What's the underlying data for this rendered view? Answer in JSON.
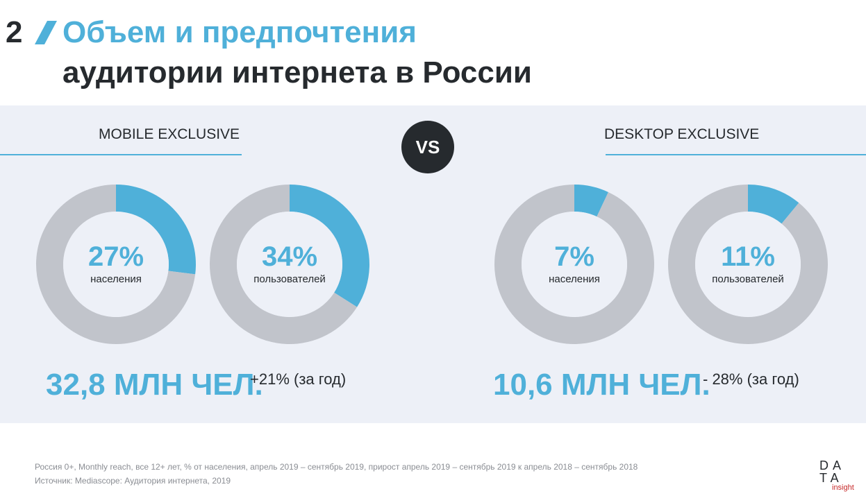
{
  "header": {
    "slide_number": "2",
    "title_line1": "Объем и предпочтения",
    "title_line2": "аудитории интернета в России"
  },
  "sections": {
    "mobile_label": "MOBILE EXCLUSIVE",
    "desktop_label": "DESKTOP EXCLUSIVE",
    "vs_label": "VS"
  },
  "chart_data": [
    {
      "type": "pie",
      "group": "MOBILE EXCLUSIVE",
      "value_label": "27%",
      "sublabel": "населения",
      "values": [
        27,
        73
      ],
      "colors": [
        "#4fb0d9",
        "#c1c4cb"
      ]
    },
    {
      "type": "pie",
      "group": "MOBILE EXCLUSIVE",
      "value_label": "34%",
      "sublabel": "пользователей",
      "values": [
        34,
        66
      ],
      "colors": [
        "#4fb0d9",
        "#c1c4cb"
      ]
    },
    {
      "type": "pie",
      "group": "DESKTOP EXCLUSIVE",
      "value_label": "7%",
      "sublabel": "населения",
      "values": [
        7,
        93
      ],
      "colors": [
        "#4fb0d9",
        "#c1c4cb"
      ]
    },
    {
      "type": "pie",
      "group": "DESKTOP EXCLUSIVE",
      "value_label": "11%",
      "sublabel": "пользователей",
      "values": [
        11,
        89
      ],
      "colors": [
        "#4fb0d9",
        "#c1c4cb"
      ]
    }
  ],
  "totals": {
    "mobile_value": "32,8 МЛН ЧЕЛ.",
    "mobile_growth": "+21% (за год)",
    "desktop_value": "10,6 МЛН ЧЕЛ.",
    "desktop_growth": "- 28% (за год)"
  },
  "footer": {
    "note": "Россия 0+, Monthly reach, все 12+ лет, % от населения, апрель 2019 – сентябрь 2019, прирост апрель 2019 – сентябрь 2019 к апрель 2018 – сентябрь 2018",
    "source": "Источник: Mediascope: Аудитория интернета, 2019"
  },
  "logo": {
    "line1": "DA",
    "line2": "TA",
    "line3": "insight"
  },
  "colors": {
    "accent": "#4fb0d9",
    "dark": "#262a2e",
    "ring_grey": "#c1c4cb",
    "panel": "#edf0f7"
  }
}
